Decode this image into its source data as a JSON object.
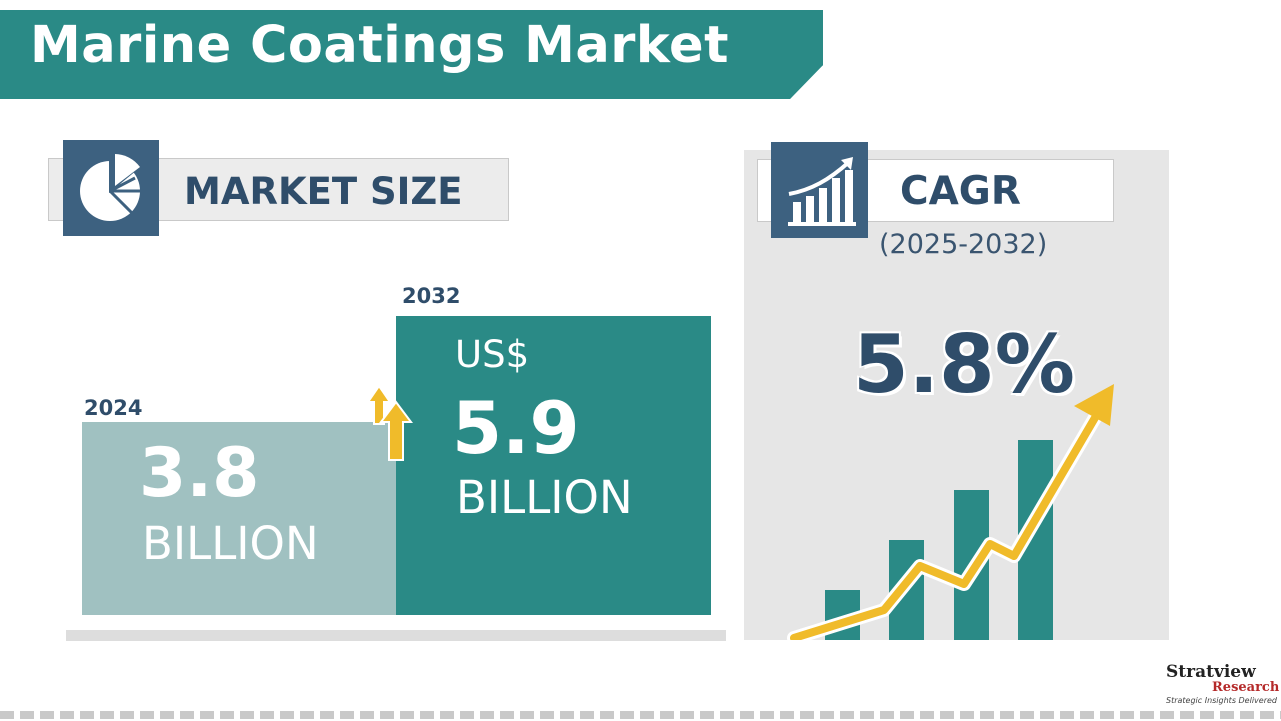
{
  "header": {
    "title": "Marine Coatings Market"
  },
  "market_size": {
    "label": "MARKET SIZE",
    "bars": [
      {
        "year": "2024",
        "value_text": "3.8",
        "unit": "BILLION",
        "currency": ""
      },
      {
        "year": "2032",
        "value_text": "5.9",
        "unit": "BILLION",
        "currency": "US$"
      }
    ]
  },
  "cagr": {
    "label": "CAGR",
    "period": "(2025-2032)",
    "value": "5.8%"
  },
  "logo": {
    "name": "Stratview",
    "sub": "Research",
    "tagline": "Strategic Insights Delivered"
  },
  "colors": {
    "teal": "#2a8a86",
    "light_teal": "#a0c1c1",
    "navy": "#3d6180",
    "text_navy": "#2f4d6a",
    "arrow_yellow": "#f0bb2a"
  },
  "chart_data": [
    {
      "type": "bar",
      "title": "MARKET SIZE",
      "categories": [
        "2024",
        "2032"
      ],
      "values": [
        3.8,
        5.9
      ],
      "ylabel": "",
      "xlabel": "",
      "ylim": [
        0,
        6.7
      ]
    },
    {
      "type": "bar",
      "title": "",
      "categories": [
        "1",
        "2",
        "3",
        "4"
      ],
      "values": [
        1,
        2,
        3,
        4
      ],
      "ylim": [
        0,
        4.3
      ]
    }
  ]
}
